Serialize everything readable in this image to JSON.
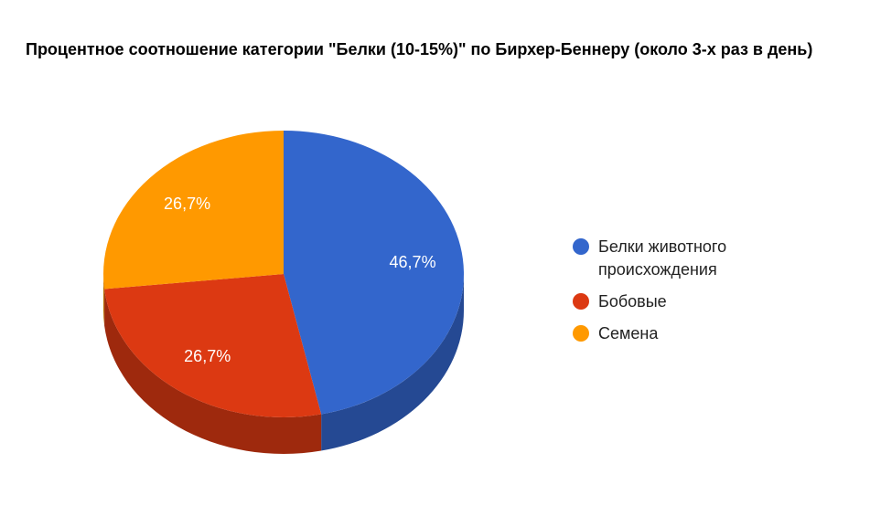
{
  "chart_data": {
    "type": "pie",
    "title": "Процентное соотношение категории \"Белки (10-15%)\" по Бирхер-Беннеру (около 3-х раз в день)",
    "categories": [
      "Белки животного происхождения",
      "Бобовые",
      "Семена"
    ],
    "values": [
      46.7,
      26.7,
      26.7
    ],
    "value_labels": [
      "46,7%",
      "26,7%",
      "26,7%"
    ],
    "colors": [
      "#3366cc",
      "#dc3912",
      "#ff9900"
    ],
    "legend": "right"
  }
}
